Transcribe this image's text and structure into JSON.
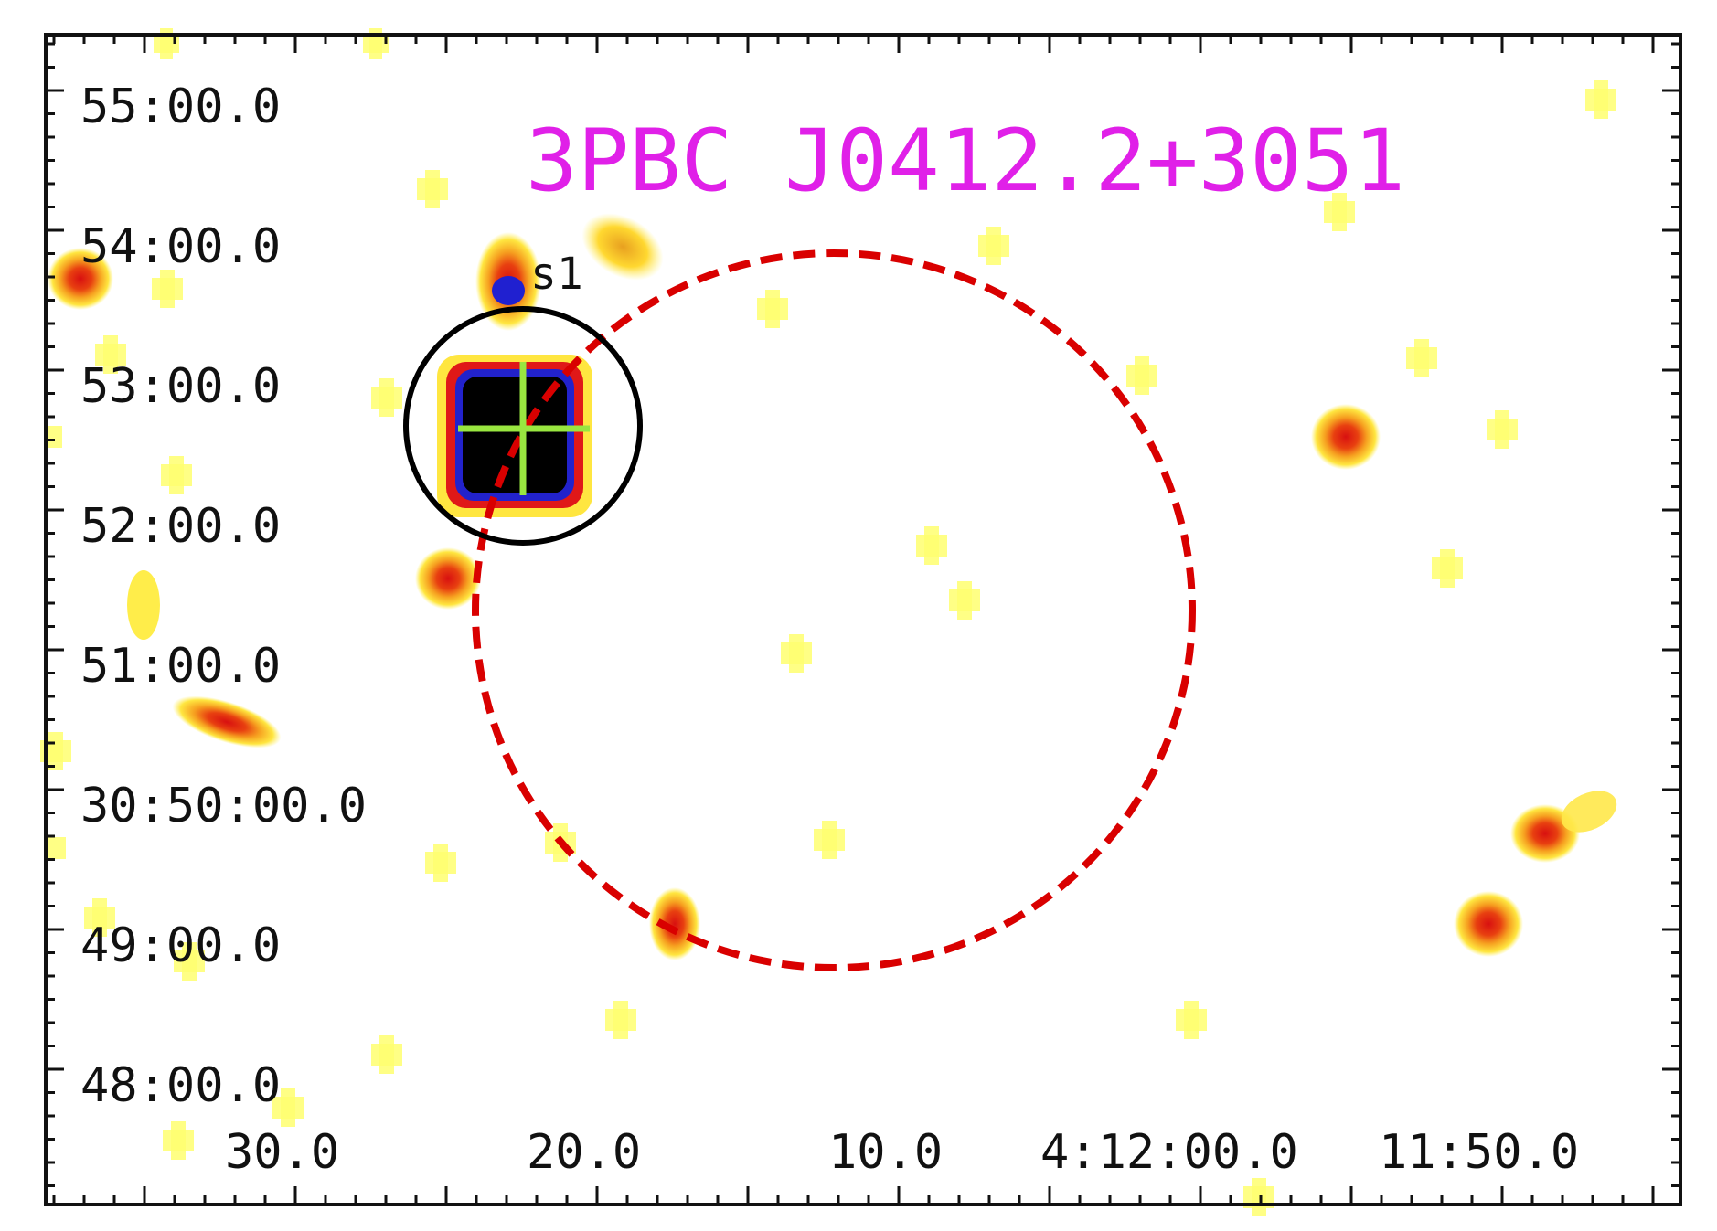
{
  "title": "3PBC J0412.2+3051",
  "colors": {
    "title": "#e020e8",
    "ellipse": "#d90000",
    "marker_circle": "#000000",
    "crosshair": "#99e640",
    "frame": "#111111"
  },
  "axes": {
    "dec_labels": [
      "55:00.0",
      "54:00.0",
      "53:00.0",
      "52:00.0",
      "51:00.0",
      "30:50:00.0",
      "49:00.0",
      "48:00.0"
    ],
    "ra_labels": [
      "30.0",
      "20.0",
      "10.0",
      "4:12:00.0",
      "11:50.0"
    ]
  },
  "source": {
    "label": "s1"
  }
}
